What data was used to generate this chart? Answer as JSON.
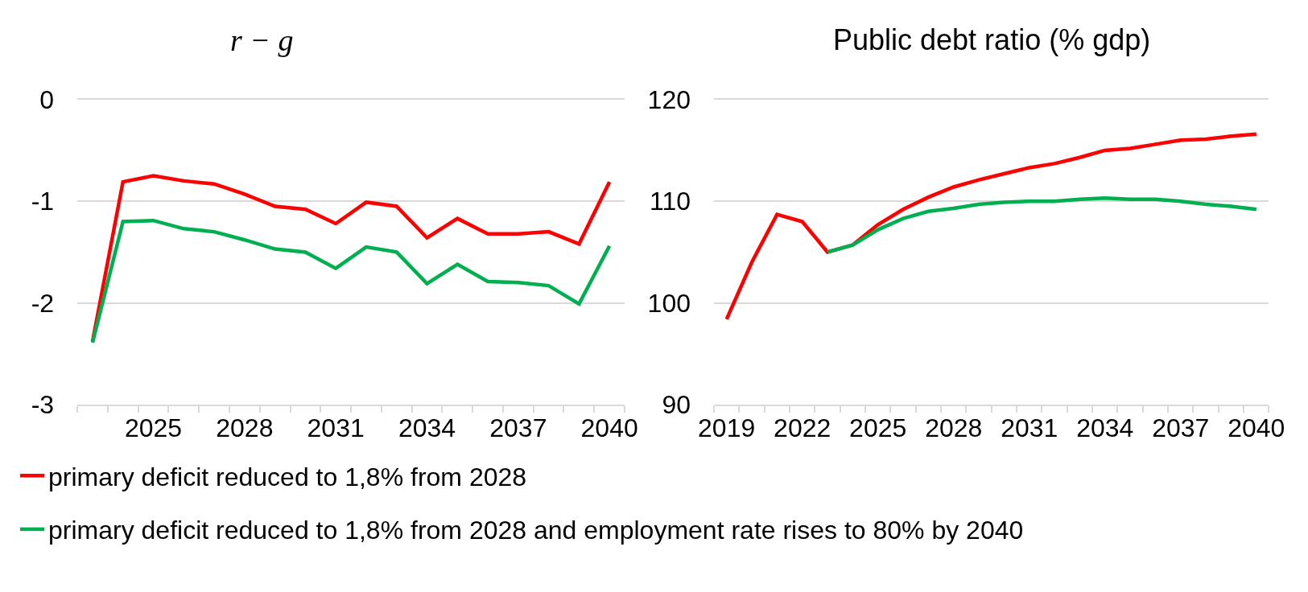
{
  "chart_data": [
    {
      "type": "line",
      "title": "r − g",
      "categories": [
        null,
        null,
        "2025",
        null,
        null,
        "2028",
        null,
        null,
        "2031",
        null,
        null,
        "2034",
        null,
        null,
        "2037",
        null,
        null,
        "2040"
      ],
      "series": [
        {
          "name": "primary deficit reduced to 1,8% from 2028",
          "color": "#ff0000",
          "values": [
            -2.38,
            -0.81,
            -0.75,
            -0.8,
            -0.83,
            -0.93,
            -1.05,
            -1.08,
            -1.22,
            -1.01,
            -1.05,
            -1.36,
            -1.17,
            -1.32,
            -1.32,
            -1.3,
            -1.42,
            -0.81
          ]
        },
        {
          "name": "primary deficit reduced to 1,8% from 2028 and employment rate rises to 80% by 2040",
          "color": "#00b050",
          "values": [
            -2.39,
            -1.2,
            -1.19,
            -1.27,
            -1.3,
            -1.38,
            -1.47,
            -1.5,
            -1.66,
            -1.45,
            -1.5,
            -1.81,
            -1.62,
            -1.79,
            -1.8,
            -1.83,
            -2.01,
            -1.44
          ]
        }
      ],
      "ylim": [
        -3,
        0
      ],
      "yticks": [
        -3,
        -2,
        -1,
        0
      ],
      "grid": "y",
      "legend": "bottom"
    },
    {
      "type": "line",
      "title": "Public debt ratio (% gdp)",
      "categories": [
        "2019",
        null,
        null,
        "2022",
        null,
        null,
        "2025",
        null,
        null,
        "2028",
        null,
        null,
        "2031",
        null,
        null,
        "2034",
        null,
        null,
        "2037",
        null,
        null,
        "2040"
      ],
      "series": [
        {
          "color": "#ff0000",
          "values": [
            98.4,
            104.0,
            108.7,
            108.0,
            105.0,
            105.7,
            107.7,
            109.2,
            110.4,
            111.4,
            112.1,
            112.7,
            113.3,
            113.7,
            114.3,
            115.0,
            115.2,
            115.6,
            116.0,
            116.1,
            116.4,
            116.6
          ]
        },
        {
          "color": "#00b050",
          "values": [
            null,
            null,
            null,
            null,
            105.0,
            105.7,
            107.2,
            108.3,
            109.0,
            109.3,
            109.7,
            109.9,
            110.0,
            110.0,
            110.2,
            110.3,
            110.2,
            110.2,
            110.0,
            109.7,
            109.5,
            109.2
          ]
        }
      ],
      "ylim": [
        90,
        120
      ],
      "yticks": [
        90,
        100,
        110,
        120
      ],
      "grid": "y"
    }
  ]
}
